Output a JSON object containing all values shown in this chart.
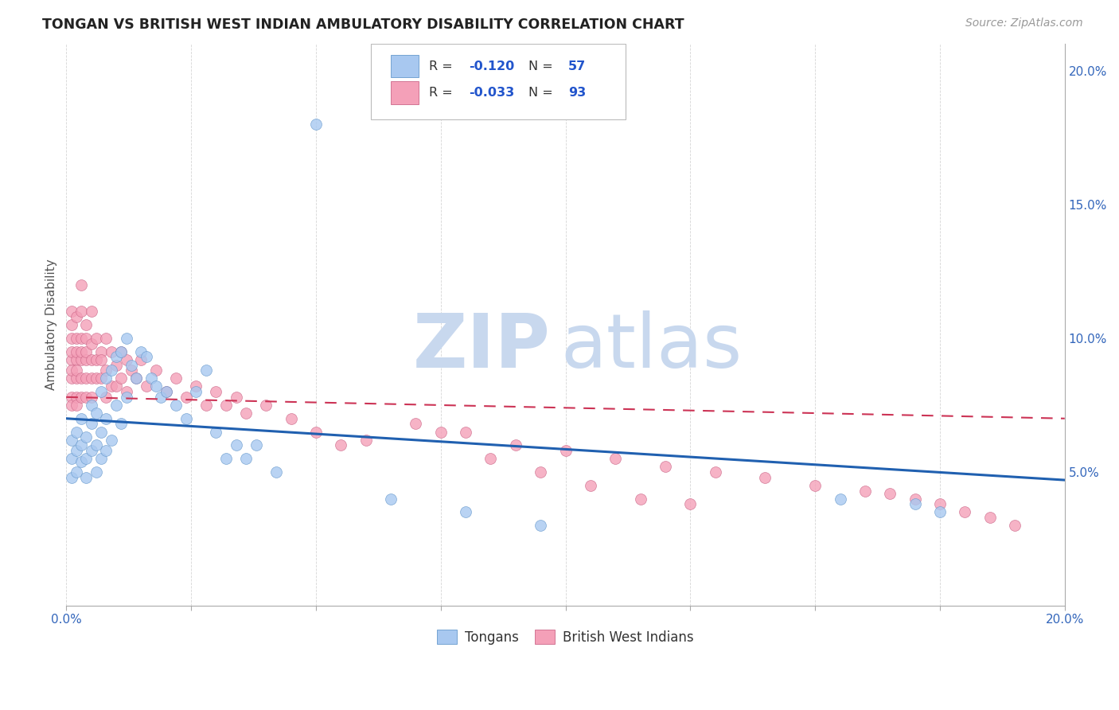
{
  "title": "TONGAN VS BRITISH WEST INDIAN AMBULATORY DISABILITY CORRELATION CHART",
  "source": "Source: ZipAtlas.com",
  "ylabel": "Ambulatory Disability",
  "xlim": [
    0.0,
    0.2
  ],
  "ylim": [
    0.0,
    0.21
  ],
  "xticks": [
    0.0,
    0.025,
    0.05,
    0.075,
    0.1,
    0.125,
    0.15,
    0.175,
    0.2
  ],
  "xtick_labels": [
    "0.0%",
    "",
    "",
    "",
    "",
    "",
    "",
    "",
    "20.0%"
  ],
  "ytick_right_vals": [
    0.05,
    0.1,
    0.15,
    0.2
  ],
  "ytick_right_labels": [
    "5.0%",
    "10.0%",
    "15.0%",
    "20.0%"
  ],
  "blue_color": "#a8c8f0",
  "pink_color": "#f4a0b8",
  "blue_edge": "#6699cc",
  "pink_edge": "#cc6688",
  "trend_blue": "#2060b0",
  "trend_pink": "#cc3355",
  "watermark_zip_color": "#c8d8ee",
  "watermark_atlas_color": "#c8d8ee",
  "blue_intercept": 0.07,
  "blue_slope": -0.115,
  "pink_intercept": 0.078,
  "pink_slope": -0.04,
  "tongans_x": [
    0.001,
    0.001,
    0.001,
    0.002,
    0.002,
    0.002,
    0.003,
    0.003,
    0.003,
    0.004,
    0.004,
    0.004,
    0.005,
    0.005,
    0.005,
    0.006,
    0.006,
    0.006,
    0.007,
    0.007,
    0.007,
    0.008,
    0.008,
    0.008,
    0.009,
    0.009,
    0.01,
    0.01,
    0.011,
    0.011,
    0.012,
    0.012,
    0.013,
    0.014,
    0.015,
    0.016,
    0.017,
    0.018,
    0.019,
    0.02,
    0.022,
    0.024,
    0.026,
    0.028,
    0.03,
    0.032,
    0.034,
    0.036,
    0.038,
    0.042,
    0.05,
    0.065,
    0.08,
    0.095,
    0.155,
    0.17,
    0.175
  ],
  "tongans_y": [
    0.055,
    0.062,
    0.048,
    0.058,
    0.05,
    0.065,
    0.06,
    0.054,
    0.07,
    0.055,
    0.063,
    0.048,
    0.068,
    0.058,
    0.075,
    0.072,
    0.06,
    0.05,
    0.08,
    0.065,
    0.055,
    0.085,
    0.07,
    0.058,
    0.088,
    0.062,
    0.093,
    0.075,
    0.095,
    0.068,
    0.1,
    0.078,
    0.09,
    0.085,
    0.095,
    0.093,
    0.085,
    0.082,
    0.078,
    0.08,
    0.075,
    0.07,
    0.08,
    0.088,
    0.065,
    0.055,
    0.06,
    0.055,
    0.06,
    0.05,
    0.18,
    0.04,
    0.035,
    0.03,
    0.04,
    0.038,
    0.035
  ],
  "bwi_x": [
    0.001,
    0.001,
    0.001,
    0.001,
    0.001,
    0.001,
    0.001,
    0.001,
    0.001,
    0.002,
    0.002,
    0.002,
    0.002,
    0.002,
    0.002,
    0.002,
    0.002,
    0.003,
    0.003,
    0.003,
    0.003,
    0.003,
    0.003,
    0.003,
    0.004,
    0.004,
    0.004,
    0.004,
    0.004,
    0.004,
    0.005,
    0.005,
    0.005,
    0.005,
    0.005,
    0.006,
    0.006,
    0.006,
    0.007,
    0.007,
    0.007,
    0.008,
    0.008,
    0.008,
    0.009,
    0.009,
    0.01,
    0.01,
    0.011,
    0.011,
    0.012,
    0.012,
    0.013,
    0.014,
    0.015,
    0.016,
    0.018,
    0.02,
    0.022,
    0.024,
    0.026,
    0.028,
    0.03,
    0.032,
    0.034,
    0.036,
    0.04,
    0.045,
    0.05,
    0.06,
    0.07,
    0.08,
    0.09,
    0.1,
    0.11,
    0.12,
    0.13,
    0.14,
    0.15,
    0.16,
    0.165,
    0.17,
    0.175,
    0.18,
    0.185,
    0.19,
    0.055,
    0.075,
    0.085,
    0.095,
    0.105,
    0.115,
    0.125
  ],
  "bwi_y": [
    0.1,
    0.092,
    0.085,
    0.11,
    0.078,
    0.095,
    0.088,
    0.075,
    0.105,
    0.1,
    0.092,
    0.085,
    0.108,
    0.078,
    0.095,
    0.088,
    0.075,
    0.1,
    0.092,
    0.11,
    0.085,
    0.12,
    0.078,
    0.095,
    0.105,
    0.092,
    0.085,
    0.1,
    0.078,
    0.095,
    0.098,
    0.085,
    0.11,
    0.078,
    0.092,
    0.1,
    0.085,
    0.092,
    0.095,
    0.085,
    0.092,
    0.1,
    0.088,
    0.078,
    0.095,
    0.082,
    0.09,
    0.082,
    0.095,
    0.085,
    0.092,
    0.08,
    0.088,
    0.085,
    0.092,
    0.082,
    0.088,
    0.08,
    0.085,
    0.078,
    0.082,
    0.075,
    0.08,
    0.075,
    0.078,
    0.072,
    0.075,
    0.07,
    0.065,
    0.062,
    0.068,
    0.065,
    0.06,
    0.058,
    0.055,
    0.052,
    0.05,
    0.048,
    0.045,
    0.043,
    0.042,
    0.04,
    0.038,
    0.035,
    0.033,
    0.03,
    0.06,
    0.065,
    0.055,
    0.05,
    0.045,
    0.04,
    0.038
  ]
}
